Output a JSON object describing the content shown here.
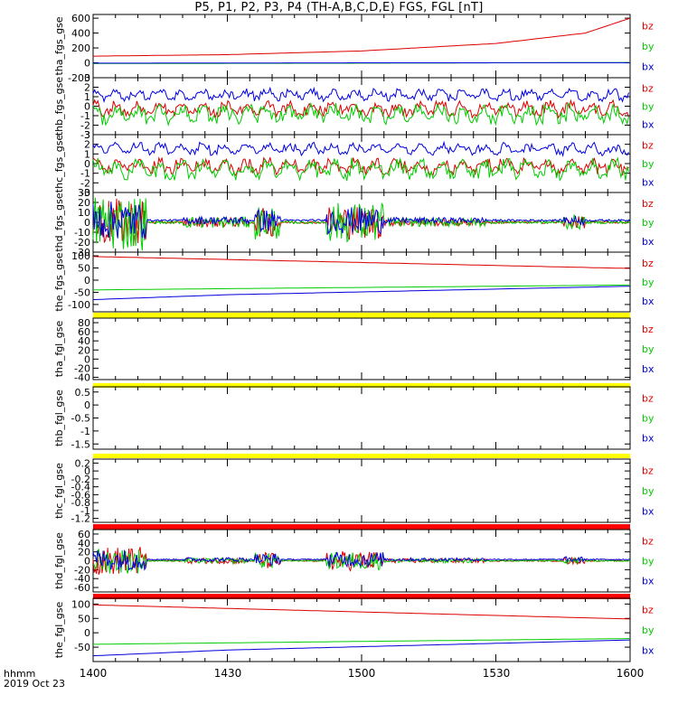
{
  "title": "P5, P1, P2, P3, P4 (TH-A,B,C,D,E) FGS, FGL [nT]",
  "time_axis": {
    "label_format": "hhmm",
    "date": "2019 Oct 23",
    "ticks": [
      "1400",
      "1430",
      "1500",
      "1530",
      "1600"
    ],
    "range_minutes": [
      0,
      120
    ]
  },
  "colors": {
    "bz": "#dd0000",
    "by": "#00cc00",
    "bx": "#0000dd",
    "flag_yellow": "#ffff00",
    "flag_red": "#ff0000"
  },
  "legend": [
    "bz",
    "by",
    "bx"
  ],
  "chart_data": [
    {
      "type": "line",
      "ylabel": "tha_fgs_gse",
      "ylim": [
        -200,
        650
      ],
      "yticks": [
        -200,
        0,
        200,
        400,
        600
      ],
      "series": [
        {
          "name": "bz",
          "kind": "curve",
          "x": [
            0,
            30,
            60,
            90,
            110,
            120
          ],
          "values": [
            90,
            110,
            160,
            260,
            400,
            600
          ]
        },
        {
          "name": "by",
          "kind": "curve",
          "x": [
            0,
            60,
            120
          ],
          "values": [
            -10,
            -5,
            5
          ]
        },
        {
          "name": "bx",
          "kind": "curve",
          "x": [
            0,
            60,
            120
          ],
          "values": [
            -5,
            0,
            2
          ]
        }
      ]
    },
    {
      "type": "line",
      "ylabel": "thb_fgs_gse",
      "ylim": [
        -3,
        3
      ],
      "yticks": [
        -3,
        -2,
        -1,
        0,
        1,
        2,
        3
      ],
      "series": [
        {
          "name": "bz",
          "kind": "noise",
          "base": -0.3,
          "amp": 0.8
        },
        {
          "name": "by",
          "kind": "noise",
          "base": -0.8,
          "amp": 1.0
        },
        {
          "name": "bx",
          "kind": "noise",
          "base": 1.2,
          "amp": 0.6
        }
      ]
    },
    {
      "type": "line",
      "ylabel": "thc_fgs_gse",
      "ylim": [
        -3,
        3
      ],
      "yticks": [
        -3,
        -2,
        -1,
        0,
        1,
        2,
        3
      ],
      "series": [
        {
          "name": "bz",
          "kind": "noise",
          "base": -0.3,
          "amp": 0.8
        },
        {
          "name": "by",
          "kind": "noise",
          "base": -0.6,
          "amp": 1.0
        },
        {
          "name": "bx",
          "kind": "noise",
          "base": 1.5,
          "amp": 0.6
        }
      ]
    },
    {
      "type": "line",
      "ylabel": "thd_fgs_gse",
      "ylim": [
        -30,
        30
      ],
      "yticks": [
        -30,
        -20,
        -10,
        0,
        10,
        20,
        30
      ],
      "series": [
        {
          "name": "bz",
          "kind": "burst",
          "base": 0,
          "amp": 15
        },
        {
          "name": "by",
          "kind": "burst",
          "base": 0,
          "amp": 18
        },
        {
          "name": "bx",
          "kind": "burst",
          "base": 2,
          "amp": 12
        }
      ]
    },
    {
      "type": "line",
      "ylabel": "the_fgs_gse",
      "ylim": [
        -130,
        115
      ],
      "yticks": [
        -100,
        -50,
        0,
        50,
        100
      ],
      "series": [
        {
          "name": "bz",
          "kind": "curve",
          "x": [
            0,
            120
          ],
          "values": [
            97,
            48
          ]
        },
        {
          "name": "by",
          "kind": "curve",
          "x": [
            0,
            120
          ],
          "values": [
            -40,
            -20
          ]
        },
        {
          "name": "bx",
          "kind": "curve",
          "x": [
            0,
            30,
            120
          ],
          "values": [
            -80,
            -60,
            -25
          ]
        }
      ]
    },
    {
      "type": "line",
      "ylabel": "tha_fgl_gse",
      "ylim": [
        -45,
        90
      ],
      "yticks": [
        -40,
        -20,
        0,
        20,
        40,
        60,
        80
      ],
      "series": []
    },
    {
      "type": "line",
      "ylabel": "thb_fgl_gse",
      "ylim": [
        -1.7,
        0.7
      ],
      "yticks": [
        -1.5,
        -1.0,
        -0.5,
        0.0,
        0.5
      ],
      "series": []
    },
    {
      "type": "line",
      "ylabel": "thc_fgl_gse",
      "ylim": [
        -1.3,
        0.3
      ],
      "yticks": [
        -1.2,
        -1.0,
        -0.8,
        -0.6,
        -0.4,
        -0.2,
        0.0,
        0.2
      ],
      "series": []
    },
    {
      "type": "line",
      "ylabel": "thd_fgl_gse",
      "ylim": [
        -70,
        70
      ],
      "yticks": [
        -60,
        -40,
        -20,
        0,
        20,
        40,
        60
      ],
      "series": [
        {
          "name": "bz",
          "kind": "burst",
          "base": 0,
          "amp": 20
        },
        {
          "name": "by",
          "kind": "burst",
          "base": 0,
          "amp": 18
        },
        {
          "name": "bx",
          "kind": "burst",
          "base": 3,
          "amp": 15
        }
      ]
    },
    {
      "type": "line",
      "ylabel": "the_fgl_gse",
      "ylim": [
        -100,
        120
      ],
      "yticks": [
        -50,
        0,
        50,
        100
      ],
      "series": [
        {
          "name": "bz",
          "kind": "curve",
          "x": [
            0,
            120
          ],
          "values": [
            97,
            48
          ]
        },
        {
          "name": "by",
          "kind": "curve",
          "x": [
            0,
            120
          ],
          "values": [
            -40,
            -20
          ]
        },
        {
          "name": "bx",
          "kind": "curve",
          "x": [
            0,
            30,
            120
          ],
          "values": [
            -80,
            -60,
            -25
          ]
        }
      ]
    }
  ]
}
